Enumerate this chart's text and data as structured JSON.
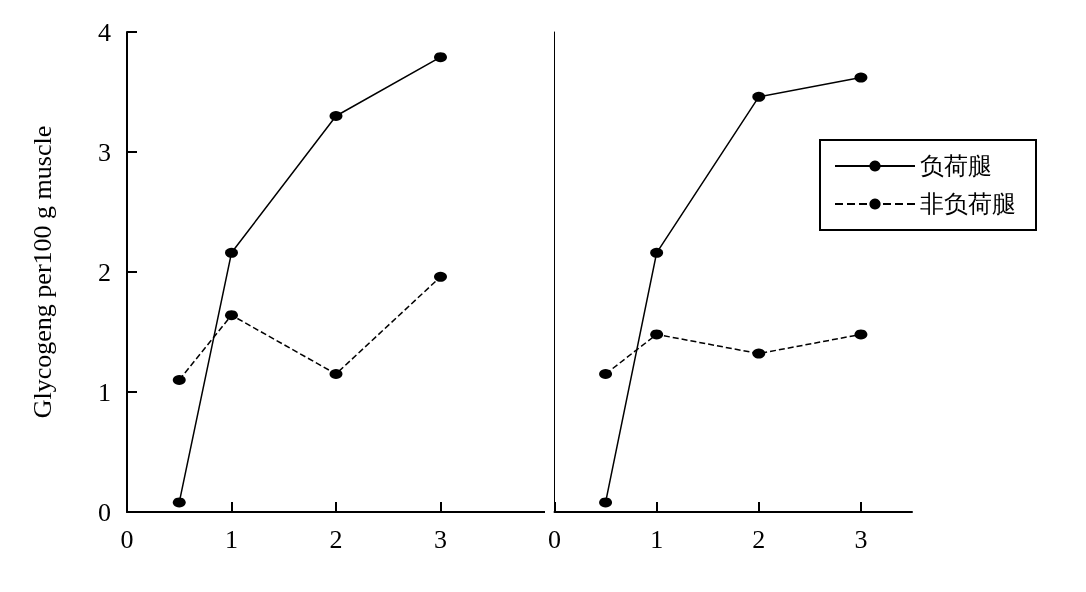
{
  "chart_data": [
    {
      "type": "line",
      "ylabel": "Glycogeng per100 g muscle",
      "xlim": [
        0,
        4
      ],
      "xticks": [
        0,
        1,
        2,
        3
      ],
      "ylim": [
        0,
        4
      ],
      "yticks": [
        0,
        1,
        2,
        3,
        4
      ],
      "grid": false,
      "legend": false,
      "marker": "circle",
      "series": [
        {
          "color": "#000000",
          "line_style": "solid",
          "x": [
            0.5,
            1,
            2,
            3
          ],
          "values": [
            0.08,
            2.16,
            3.3,
            3.79
          ]
        },
        {
          "color": "#000000",
          "line_style": "dashed",
          "x": [
            0.5,
            1,
            2,
            3
          ],
          "values": [
            1.1,
            1.64,
            1.15,
            1.96
          ]
        }
      ]
    },
    {
      "type": "line",
      "xlim": [
        0,
        3.5
      ],
      "xticks": [
        0,
        1,
        2,
        3
      ],
      "ylim": [
        0,
        4
      ],
      "yticks": [
        0,
        1,
        2,
        3,
        4
      ],
      "grid": false,
      "legend": "right",
      "marker": "circle",
      "tick_labels": "x",
      "series": [
        {
          "name": "负荷腿",
          "color": "#000000",
          "line_style": "solid",
          "x": [
            0.5,
            1,
            2,
            3
          ],
          "values": [
            0.08,
            2.16,
            3.46,
            3.62
          ]
        },
        {
          "name": "非负荷腿",
          "color": "#000000",
          "line_style": "dashed",
          "x": [
            0.5,
            1,
            2,
            3
          ],
          "values": [
            1.15,
            1.48,
            1.32,
            1.48
          ]
        }
      ]
    }
  ]
}
